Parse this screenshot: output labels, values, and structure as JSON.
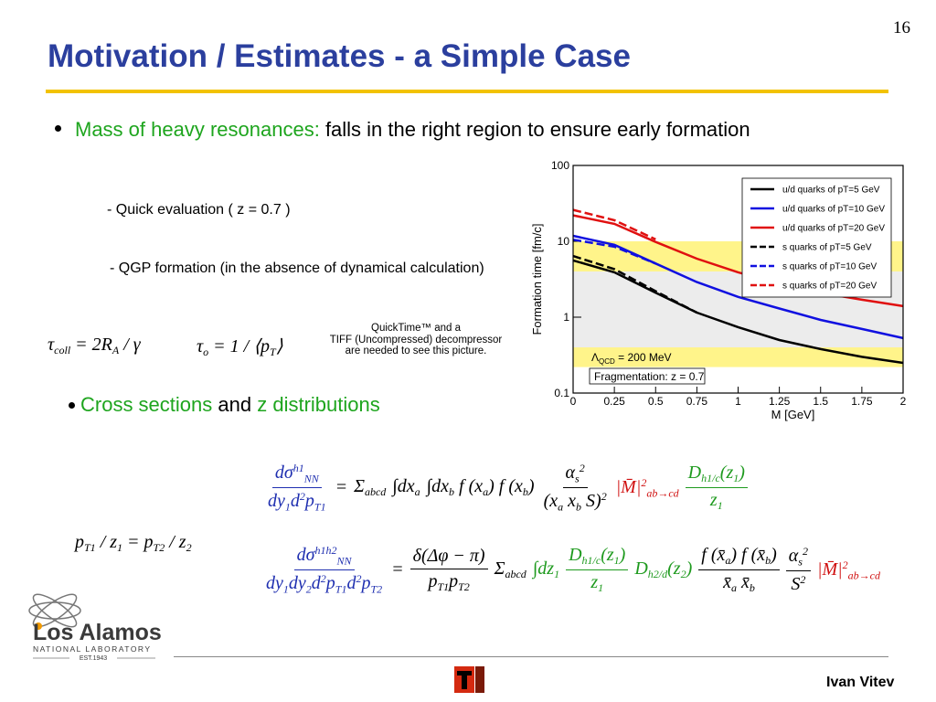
{
  "page_number": "16",
  "title": "Motivation / Estimates - a Simple Case",
  "bullet1": {
    "highlight": "Mass of heavy resonances:",
    "text": "falls in the right region to ensure early formation"
  },
  "sub_items": [
    "- Quick evaluation ( z = 0.7 )",
    "- QGP formation (in the absence of dynamical calculation)"
  ],
  "placeholder": [
    "QuickTime™ and a",
    "TIFF (Uncompressed) decompressor",
    "are needed to see this picture."
  ],
  "bullet2": [
    "Cross sections",
    "and",
    "z distributions"
  ],
  "equations": [
    {
      "items": [
        {
          "segs": [
            {
              "text": "τ"
            },
            {
              "text": "coll",
              "pos": "sub"
            },
            {
              "text": " = 2R"
            },
            {
              "text": "A",
              "pos": "sub"
            },
            {
              "text": " / γ"
            }
          ]
        }
      ]
    },
    {
      "items": [
        {
          "segs": [
            {
              "text": "τ"
            },
            {
              "text": "o",
              "pos": "sub"
            },
            {
              "text": " = 1 / ⟨p"
            },
            {
              "text": "T",
              "pos": "sub"
            },
            {
              "text": "⟩"
            }
          ]
        }
      ]
    },
    {
      "items": [
        {
          "color": "#1f2fb0",
          "num": [
            {
              "text": "dσ"
            },
            {
              "text": "h1",
              "pos": "sup"
            },
            {
              "text": "NN",
              "pos": "sub"
            }
          ],
          "den": [
            {
              "text": "dy"
            },
            {
              "text": "1",
              "pos": "sub"
            },
            {
              "text": "d"
            },
            {
              "text": "2",
              "pos": "sup"
            },
            {
              "text": "p"
            },
            {
              "text": "T1",
              "pos": "sub"
            }
          ]
        },
        {
          "segs": [
            {
              "text": "="
            }
          ]
        },
        {
          "segs": [
            {
              "text": "Σ"
            },
            {
              "text": "abcd",
              "pos": "sub"
            }
          ]
        },
        {
          "segs": [
            {
              "text": "∫"
            },
            {
              "text": "dx"
            },
            {
              "text": "a",
              "pos": "sub"
            }
          ]
        },
        {
          "segs": [
            {
              "text": "∫"
            },
            {
              "text": "dx"
            },
            {
              "text": "b",
              "pos": "sub"
            },
            {
              "text": " f (x"
            },
            {
              "text": "a",
              "pos": "sub"
            },
            {
              "text": ") f (x"
            },
            {
              "text": "b",
              "pos": "sub"
            },
            {
              "text": ")"
            }
          ]
        },
        {
          "num": [
            {
              "text": "α"
            },
            {
              "text": "s",
              "pos": "sub"
            },
            {
              "text": "2",
              "pos": "sup"
            }
          ],
          "den": [
            {
              "text": "(x"
            },
            {
              "text": "a",
              "pos": "sub"
            },
            {
              "text": " x"
            },
            {
              "text": "b",
              "pos": "sub"
            },
            {
              "text": " S)"
            },
            {
              "text": "2",
              "pos": "sup"
            }
          ]
        },
        {
          "color": "#d01010",
          "segs": [
            {
              "text": "|M̄|"
            },
            {
              "text": "2",
              "pos": "sup"
            },
            {
              "text": "ab→cd",
              "pos": "sub"
            }
          ]
        },
        {
          "color": "#1e9a1e",
          "num": [
            {
              "text": "D"
            },
            {
              "text": "h1/c",
              "pos": "sub"
            },
            {
              "text": "(z"
            },
            {
              "text": "1",
              "pos": "sub"
            },
            {
              "text": ")"
            }
          ],
          "den": [
            {
              "text": "z"
            },
            {
              "text": "1",
              "pos": "sub"
            }
          ]
        }
      ]
    },
    {
      "items": [
        {
          "segs": [
            {
              "text": "p"
            },
            {
              "text": "T1",
              "pos": "sub"
            },
            {
              "text": " / z"
            },
            {
              "text": "1",
              "pos": "sub"
            },
            {
              "text": " = p"
            },
            {
              "text": "T2",
              "pos": "sub"
            },
            {
              "text": " / z"
            },
            {
              "text": "2",
              "pos": "sub"
            }
          ]
        }
      ]
    },
    {
      "items": [
        {
          "color": "#1f2fb0",
          "num": [
            {
              "text": "dσ"
            },
            {
              "text": "h1h2",
              "pos": "sup"
            },
            {
              "text": "NN",
              "pos": "sub"
            }
          ],
          "den": [
            {
              "text": "dy"
            },
            {
              "text": "1",
              "pos": "sub"
            },
            {
              "text": "dy"
            },
            {
              "text": "2",
              "pos": "sub"
            },
            {
              "text": "d"
            },
            {
              "text": "2",
              "pos": "sup"
            },
            {
              "text": "p"
            },
            {
              "text": "T1",
              "pos": "sub"
            },
            {
              "text": "d"
            },
            {
              "text": "2",
              "pos": "sup"
            },
            {
              "text": "p"
            },
            {
              "text": "T2",
              "pos": "sub"
            }
          ]
        },
        {
          "segs": [
            {
              "text": "="
            }
          ]
        },
        {
          "num": [
            {
              "text": "δ(Δφ − π)"
            }
          ],
          "den": [
            {
              "text": "p"
            },
            {
              "text": "T1",
              "pos": "sub"
            },
            {
              "text": "p"
            },
            {
              "text": "T2",
              "pos": "sub"
            }
          ]
        },
        {
          "segs": [
            {
              "text": "Σ"
            },
            {
              "text": "abcd",
              "pos": "sub"
            }
          ]
        },
        {
          "color": "#1e9a1e",
          "segs": [
            {
              "text": "∫"
            },
            {
              "text": "dz"
            },
            {
              "text": "1",
              "pos": "sub"
            }
          ]
        },
        {
          "color": "#1e9a1e",
          "num": [
            {
              "text": "D"
            },
            {
              "text": "h1/c",
              "pos": "sub"
            },
            {
              "text": "(z"
            },
            {
              "text": "1",
              "pos": "sub"
            },
            {
              "text": ")"
            }
          ],
          "den": [
            {
              "text": "z"
            },
            {
              "text": "1",
              "pos": "sub"
            }
          ]
        },
        {
          "color": "#1e9a1e",
          "segs": [
            {
              "text": "D"
            },
            {
              "text": "h2/d",
              "pos": "sub"
            },
            {
              "text": "(z"
            },
            {
              "text": "2",
              "pos": "sub"
            },
            {
              "text": ")"
            }
          ]
        },
        {
          "num": [
            {
              "text": "f (x̄"
            },
            {
              "text": "a",
              "pos": "sub"
            },
            {
              "text": ") f (x̄"
            },
            {
              "text": "b",
              "pos": "sub"
            },
            {
              "text": ")"
            }
          ],
          "den": [
            {
              "text": "x̄"
            },
            {
              "text": "a",
              "pos": "sub"
            },
            {
              "text": " x̄"
            },
            {
              "text": "b",
              "pos": "sub"
            }
          ]
        },
        {
          "num": [
            {
              "text": "α"
            },
            {
              "text": "s",
              "pos": "sub"
            },
            {
              "text": "2",
              "pos": "sup"
            }
          ],
          "den": [
            {
              "text": "S"
            },
            {
              "text": "2",
              "pos": "sup"
            }
          ]
        },
        {
          "color": "#d01010",
          "segs": [
            {
              "text": "|M̄|"
            },
            {
              "text": "2",
              "pos": "sup"
            },
            {
              "text": "ab→cd",
              "pos": "sub"
            }
          ]
        }
      ]
    }
  ],
  "chart_data": {
    "type": "line",
    "xlabel": "M [GeV]",
    "ylabel": "Formation time [fm/c]",
    "xlim": [
      0,
      2
    ],
    "xticks": [
      0,
      0.25,
      0.5,
      0.75,
      1,
      1.25,
      1.5,
      1.75,
      2
    ],
    "ylim": [
      0.1,
      100
    ],
    "yticks": [
      0.1,
      1,
      10,
      100
    ],
    "log_y": true,
    "bands": [
      {
        "from": 4,
        "to": 10,
        "color": "#fff48a"
      },
      {
        "from": 0.4,
        "to": 4,
        "color": "#ececec"
      },
      {
        "from": 0.22,
        "to": 0.4,
        "color": "#fff48a"
      }
    ],
    "lambda_label": {
      "symbol": "Λ",
      "sub": "QCD",
      "rest": " = 200 MeV"
    },
    "fragmentation_label": "Fragmentation: z = 0.7",
    "series": [
      {
        "name": "u/d quarks of pT=5 GeV",
        "color": "#000000",
        "dashed": false,
        "x": [
          0,
          0.25,
          0.5,
          0.75,
          1,
          1.25,
          1.5,
          1.75,
          2
        ],
        "values": [
          5.6,
          3.9,
          2.1,
          1.15,
          0.74,
          0.5,
          0.38,
          0.3,
          0.25
        ]
      },
      {
        "name": "u/d quarks of pT=10 GeV",
        "color": "#1010e0",
        "dashed": false,
        "x": [
          0,
          0.25,
          0.5,
          0.75,
          1,
          1.25,
          1.5,
          1.75,
          2
        ],
        "values": [
          11.8,
          9,
          5.1,
          2.9,
          1.85,
          1.3,
          0.92,
          0.7,
          0.53
        ]
      },
      {
        "name": "u/d quarks of pT=20 GeV",
        "color": "#e01010",
        "dashed": false,
        "x": [
          0,
          0.25,
          0.5,
          0.75,
          1,
          1.25,
          1.5,
          1.75,
          2
        ],
        "values": [
          22,
          17,
          9.8,
          5.9,
          3.9,
          2.8,
          2.1,
          1.7,
          1.4
        ]
      },
      {
        "name": "s quarks of pT=5 GeV",
        "color": "#000000",
        "dashed": true,
        "x": [
          0,
          0.25,
          0.5,
          0.75
        ],
        "values": [
          6.4,
          4.3,
          2.2,
          1.15
        ]
      },
      {
        "name": "s quarks of pT=10 GeV",
        "color": "#1010e0",
        "dashed": true,
        "x": [
          0,
          0.25,
          0.5
        ],
        "values": [
          10.5,
          8.5,
          5.1
        ]
      },
      {
        "name": "s quarks of pT=20 GeV",
        "color": "#e01010",
        "dashed": true,
        "x": [
          0,
          0.25,
          0.5
        ],
        "values": [
          26,
          19,
          10.6
        ]
      }
    ]
  },
  "logo": {
    "name": "Los Alamos",
    "subtitle": "NATIONAL LABORATORY",
    "established": "EST.1943"
  },
  "author": "Ivan Vitev"
}
